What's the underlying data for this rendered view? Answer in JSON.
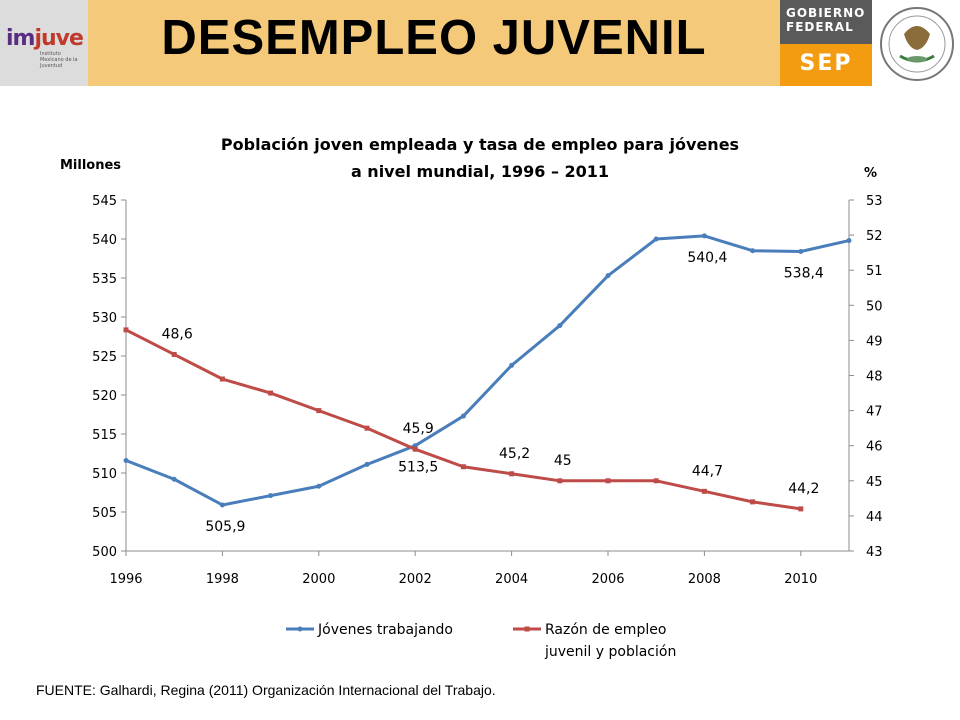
{
  "header": {
    "logo_text_a": "im",
    "logo_text_b": "juve",
    "logo_subtext": "Instituto Mexicano de la Juventud",
    "title": "DESEMPLEO JUVENIL",
    "gobierno_line1": "GOBIERNO",
    "gobierno_line2": "FEDERAL",
    "sep": "SEP"
  },
  "footer": {
    "source": "FUENTE: Galhardi, Regina (2011) Organización Internacional del Trabajo."
  },
  "colors": {
    "series1": "#4a7ebb",
    "series2": "#be4b48",
    "header_band": "#f5c97a",
    "sep": "#f39c12",
    "gobierno": "#5a5a5a"
  },
  "chart_data": {
    "type": "line",
    "title_line1": "Población joven empleada y tasa de empleo para jóvenes",
    "title_line2": "a nivel mundial, 1996 – 2011",
    "ylabel": "Millones",
    "y2label": "%",
    "xlim": [
      1996,
      2011
    ],
    "x_ticks": [
      1996,
      1998,
      2000,
      2002,
      2004,
      2006,
      2008,
      2010
    ],
    "ylim": [
      500,
      545
    ],
    "y_ticks": [
      500,
      505,
      510,
      515,
      520,
      525,
      530,
      535,
      540,
      545
    ],
    "y2lim": [
      43,
      53
    ],
    "y2_ticks": [
      43,
      44,
      45,
      46,
      47,
      48,
      49,
      50,
      51,
      52,
      53
    ],
    "grid": false,
    "legend_position": "bottom",
    "series": [
      {
        "name": "Jóvenes trabajando",
        "axis": "left",
        "x": [
          1996,
          1997,
          1998,
          1999,
          2000,
          2001,
          2002,
          2003,
          2004,
          2005,
          2006,
          2007,
          2008,
          2009,
          2010,
          2011
        ],
        "values": [
          511.6,
          509.2,
          505.9,
          507.1,
          508.3,
          511.1,
          513.5,
          517.3,
          523.8,
          528.9,
          535.3,
          540.0,
          540.4,
          538.5,
          538.4,
          539.8
        ],
        "labels": [
          {
            "x": 1998,
            "text": "505,9",
            "pos": "below"
          },
          {
            "x": 2002,
            "text": "513,5",
            "pos": "below"
          },
          {
            "x": 2008,
            "text": "540,4",
            "pos": "below"
          },
          {
            "x": 2010,
            "text": "538,4",
            "pos": "below"
          }
        ]
      },
      {
        "name": "Razón de empleo juvenil y población",
        "axis": "right",
        "x": [
          1996,
          1997,
          1998,
          1999,
          2000,
          2001,
          2002,
          2003,
          2004,
          2005,
          2006,
          2007,
          2008,
          2009,
          2010
        ],
        "values": [
          49.3,
          48.6,
          47.9,
          47.5,
          47.0,
          46.5,
          45.9,
          45.4,
          45.2,
          45.0,
          45.0,
          45.0,
          44.7,
          44.4,
          44.2
        ],
        "labels": [
          {
            "x": 1997,
            "text": "48,6",
            "pos": "above"
          },
          {
            "x": 2002,
            "text": "45,9",
            "pos": "above"
          },
          {
            "x": 2004,
            "text": "45,2",
            "pos": "above"
          },
          {
            "x": 2005,
            "text": "45",
            "pos": "above"
          },
          {
            "x": 2008,
            "text": "44,7",
            "pos": "above"
          },
          {
            "x": 2010,
            "text": "44,2",
            "pos": "above"
          }
        ]
      }
    ],
    "legend_series2_line1": "Razón de empleo",
    "legend_series2_line2": "juvenil y población"
  }
}
